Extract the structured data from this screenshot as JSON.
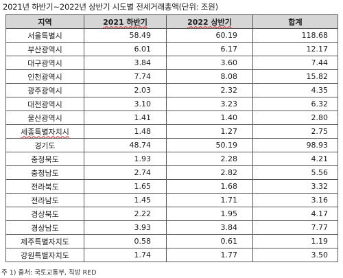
{
  "caption": "2021년 하반기~2022년 상반기 시도별 전세거래총액(단위: 조원)",
  "headers": [
    "지역",
    "2021 하반기",
    "2022 상반기",
    "합계"
  ],
  "rows": [
    {
      "region": "서울특별시",
      "h2021": "58.49",
      "h2022": "60.19",
      "total": "118.68"
    },
    {
      "region": "부산광역시",
      "h2021": "6.01",
      "h2022": "6.17",
      "total": "12.17"
    },
    {
      "region": "대구광역시",
      "h2021": "3.84",
      "h2022": "3.60",
      "total": "7.44"
    },
    {
      "region": "인천광역시",
      "h2021": "7.74",
      "h2022": "8.08",
      "total": "15.82"
    },
    {
      "region": "광주광역시",
      "h2021": "2.03",
      "h2022": "2.32",
      "total": "4.35"
    },
    {
      "region": "대전광역시",
      "h2021": "3.10",
      "h2022": "3.23",
      "total": "6.32"
    },
    {
      "region": "울산광역시",
      "h2021": "1.41",
      "h2022": "1.40",
      "total": "2.80"
    },
    {
      "region": "세종특별자치시",
      "h2021": "1.48",
      "h2022": "1.27",
      "total": "2.75"
    },
    {
      "region": "경기도",
      "h2021": "48.74",
      "h2022": "50.19",
      "total": "98.93"
    },
    {
      "region": "충청북도",
      "h2021": "1.93",
      "h2022": "2.28",
      "total": "4.21"
    },
    {
      "region": "충청남도",
      "h2021": "2.74",
      "h2022": "2.82",
      "total": "5.56"
    },
    {
      "region": "전라북도",
      "h2021": "1.65",
      "h2022": "1.68",
      "total": "3.32"
    },
    {
      "region": "전라남도",
      "h2021": "1.45",
      "h2022": "1.71",
      "total": "3.16"
    },
    {
      "region": "경상북도",
      "h2021": "2.22",
      "h2022": "1.95",
      "total": "4.17"
    },
    {
      "region": "경상남도",
      "h2021": "3.93",
      "h2022": "3.84",
      "total": "7.77"
    },
    {
      "region": "제주특별자치도",
      "h2021": "0.58",
      "h2022": "0.61",
      "total": "1.19"
    },
    {
      "region": "강원특별자치도",
      "h2021": "1.74",
      "h2022": "1.77",
      "total": "3.50"
    }
  ],
  "footnote": "주 1) 출처: 국토교통부, 직방 RED",
  "colors": {
    "header_bg": "#d6d6d6",
    "border": "#555555",
    "spellcheck": "#d32f2f"
  }
}
